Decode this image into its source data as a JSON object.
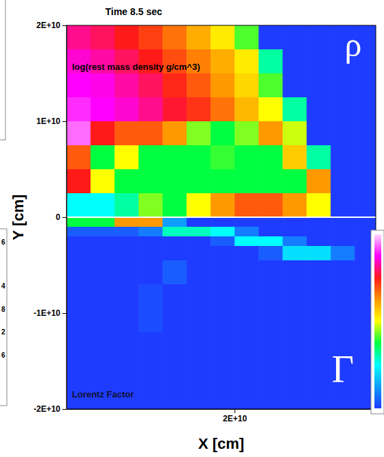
{
  "chart_data": {
    "type": "heatmap",
    "title": "Time 8.5 sec",
    "x_label": "X [cm]",
    "y_label": "Y [cm]",
    "xlim": [
      2500000000,
      34700000000
    ],
    "ylim": [
      -20000000000,
      20000000000
    ],
    "xticks": [
      {
        "value": 20000000000,
        "label": "2E+10"
      }
    ],
    "yticks": [
      {
        "value": -20000000000,
        "label": "-2E+10"
      },
      {
        "value": -10000000000,
        "label": "-1E+10"
      },
      0,
      {
        "value": 10000000000,
        "label": "1E+10"
      },
      {
        "value": 20000000000,
        "label": "2E+10"
      }
    ],
    "panels": [
      {
        "name": "log(rest mass density g/cm^3)",
        "symbol": "ρ",
        "colorbar_range": [
          1,
          9
        ],
        "x_edges": [
          2500000000,
          5000000000,
          7500000000,
          10000000000,
          12500000000,
          15000000000,
          17500000000,
          20000000000,
          22500000000,
          25000000000,
          27500000000,
          30000000000,
          32500000000,
          35000000000
        ],
        "y_edges": [
          20000000000,
          17500000000,
          15000000000,
          12500000000,
          10000000000,
          7500000000,
          5000000000,
          2500000000,
          0
        ],
        "cells": [
          [
            7.5,
            7.3,
            7,
            6.7,
            6.3,
            5.8,
            5.2,
            4.3,
            1,
            1,
            1,
            1,
            1
          ],
          [
            7.8,
            7.6,
            7.3,
            7,
            6.6,
            6.2,
            5.8,
            5.2,
            3.5,
            1,
            1,
            1,
            1
          ],
          [
            8,
            7.9,
            7.6,
            7.3,
            6.9,
            6.5,
            6,
            5.4,
            4.3,
            1,
            1,
            1,
            1
          ],
          [
            8.2,
            8,
            7.8,
            7.5,
            7.1,
            6.8,
            6.3,
            5.7,
            5,
            3.5,
            1,
            1,
            1
          ],
          [
            8.5,
            7,
            6.5,
            6.5,
            6,
            4.5,
            4,
            4.5,
            6,
            4.8,
            1,
            1,
            1
          ],
          [
            6.5,
            4,
            5,
            4,
            4,
            4,
            4.2,
            4,
            4,
            5.5,
            3.5,
            1,
            1
          ],
          [
            7,
            5,
            4,
            4,
            4,
            4,
            4,
            4,
            4,
            4,
            6,
            1,
            1
          ],
          [
            3,
            3,
            3.5,
            4.5,
            4,
            5,
            6,
            6.5,
            6.5,
            6,
            5,
            1,
            1
          ]
        ]
      },
      {
        "name": "Lorentz Factor",
        "symbol": "Γ",
        "colorbar_range": [
          1,
          25
        ],
        "x_edges": [
          2500000000,
          5000000000,
          7500000000,
          10000000000,
          12500000000,
          15000000000,
          17500000000,
          20000000000,
          22500000000,
          25000000000,
          27500000000,
          30000000000,
          32500000000,
          35000000000
        ],
        "y_edges": [
          0,
          -1000000000,
          -2000000000,
          -3000000000,
          -4500000000,
          -7000000000,
          -12000000000,
          -20000000000
        ],
        "cells": [
          [
            10,
            10,
            16,
            16,
            4,
            1,
            1,
            1,
            1,
            1,
            1,
            1,
            1
          ],
          [
            2,
            2,
            2,
            3,
            8,
            8,
            7,
            3,
            1,
            1,
            1,
            1,
            1
          ],
          [
            1,
            1,
            1,
            1,
            1,
            1,
            2,
            7,
            7,
            3,
            1,
            1,
            1
          ],
          [
            1,
            1,
            1,
            1,
            1,
            1,
            1,
            1,
            2,
            6,
            6,
            3,
            1
          ],
          [
            1,
            1,
            1,
            1,
            2,
            1,
            1,
            1,
            1,
            1,
            1,
            1,
            1
          ],
          [
            1,
            1,
            1,
            1.5,
            1,
            1,
            1,
            1,
            1,
            1,
            1,
            1,
            1
          ],
          [
            1,
            1,
            1,
            1,
            1,
            1,
            1,
            1,
            1,
            1,
            1,
            1,
            1
          ]
        ]
      }
    ],
    "cropped_labels": [
      "6",
      "4",
      "8",
      "2",
      "6"
    ]
  }
}
